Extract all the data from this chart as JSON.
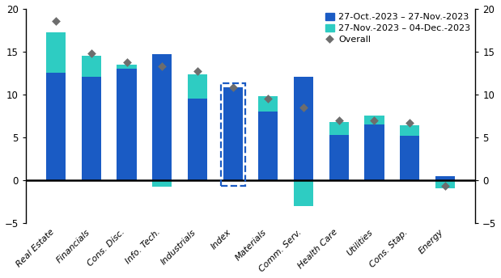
{
  "categories": [
    "Real Estate",
    "Financials",
    "Cons. Disc.",
    "Info. Tech.",
    "Industrials",
    "Index",
    "Materials",
    "Comm. Serv.",
    "Health Care",
    "Utilities",
    "Cons. Stap.",
    "Energy"
  ],
  "bar1": [
    12.5,
    12.0,
    13.0,
    14.7,
    9.5,
    10.8,
    8.0,
    12.0,
    5.3,
    6.5,
    5.2,
    0.5
  ],
  "bar2": [
    4.7,
    2.5,
    0.5,
    -0.8,
    2.8,
    0.0,
    1.8,
    -3.0,
    1.5,
    1.0,
    1.2,
    -1.0
  ],
  "overall": [
    18.5,
    14.8,
    13.7,
    13.3,
    12.7,
    10.8,
    9.5,
    8.5,
    7.0,
    7.0,
    6.7,
    -0.7
  ],
  "index_bar_idx": 5,
  "bar1_color": "#1a5bc4",
  "bar2_color": "#2eccc2",
  "overall_color": "#6d6d6d",
  "ylim": [
    -5,
    20
  ],
  "yticks": [
    -5,
    0,
    5,
    10,
    15,
    20
  ],
  "legend_label1": "27-Oct.-2023 – 27-Nov.-2023",
  "legend_label2": "27-Nov.-2023 – 04-Dec.-2023",
  "legend_label3": "Overall",
  "bar_width": 0.55
}
